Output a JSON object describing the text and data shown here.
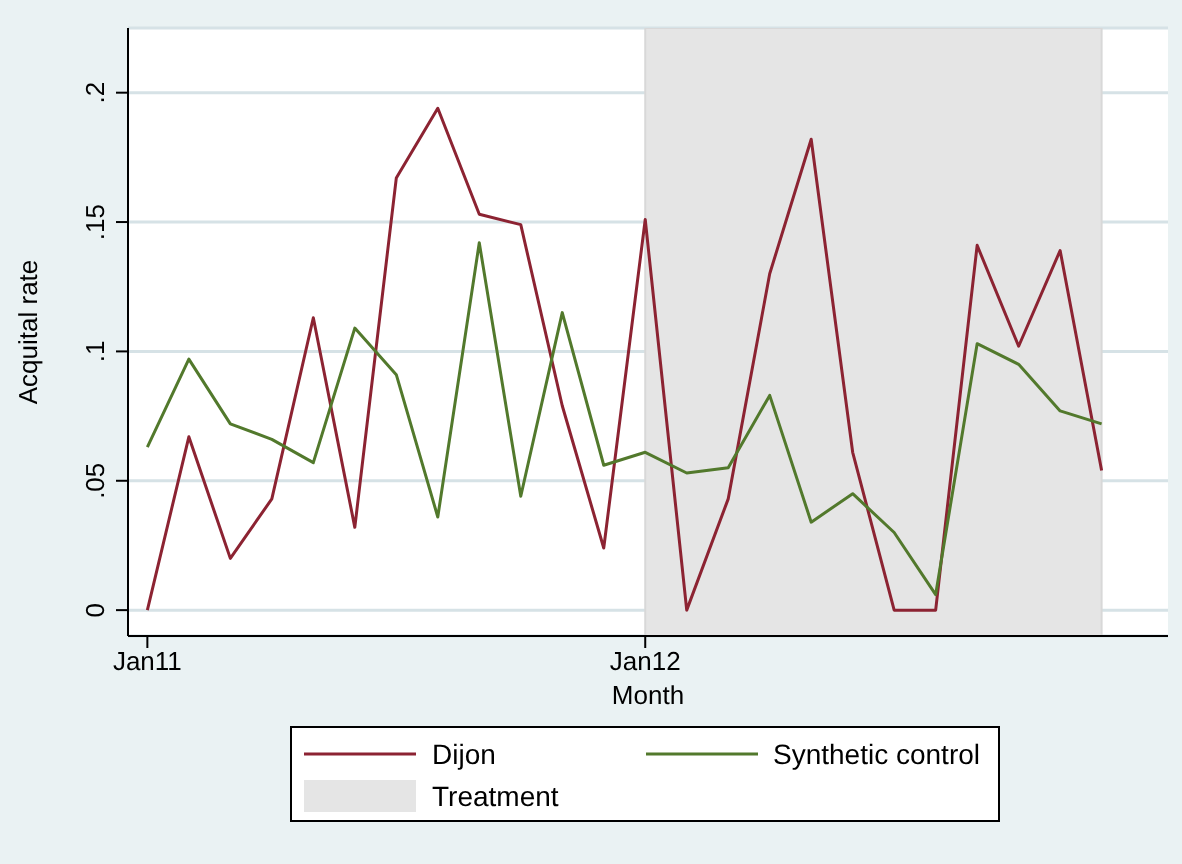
{
  "chart_data": {
    "type": "line",
    "xlabel": "Month",
    "ylabel": "Acquital rate",
    "x": [
      "2011-01",
      "2011-02",
      "2011-03",
      "2011-04",
      "2011-05",
      "2011-06",
      "2011-07",
      "2011-08",
      "2011-09",
      "2011-10",
      "2011-11",
      "2011-12",
      "2012-01",
      "2012-02",
      "2012-03",
      "2012-04",
      "2012-05",
      "2012-06",
      "2012-07",
      "2012-08",
      "2012-09",
      "2012-10",
      "2012-11",
      "2012-12"
    ],
    "series": [
      {
        "name": "Dijon",
        "color": "#8c2332",
        "values": [
          0,
          0.067,
          0.02,
          0.043,
          0.113,
          0.032,
          0.167,
          0.194,
          0.153,
          0.149,
          0.079,
          0.024,
          0.151,
          0,
          0.043,
          0.13,
          0.182,
          0.061,
          0,
          0,
          0.141,
          0.102,
          0.139,
          0.054
        ]
      },
      {
        "name": "Synthetic control",
        "color": "#52792c",
        "values": [
          0.063,
          0.097,
          0.072,
          0.066,
          0.057,
          0.109,
          0.091,
          0.036,
          0.142,
          0.044,
          0.115,
          0.056,
          0.061,
          0.053,
          0.055,
          0.083,
          0.034,
          0.045,
          0.03,
          0.006,
          0.103,
          0.095,
          0.077,
          0.072
        ]
      }
    ],
    "xlim": [
      "2010-12-17",
      "2013-01-19"
    ],
    "xticks": [
      {
        "value": "2011-01",
        "label": "Jan11"
      },
      {
        "value": "2012-01",
        "label": "Jan12"
      }
    ],
    "ylim": [
      -0.01,
      0.225
    ],
    "yticks": [
      {
        "value": 0,
        "label": "0"
      },
      {
        "value": 0.05,
        "label": ".05"
      },
      {
        "value": 0.1,
        "label": ".1"
      },
      {
        "value": 0.15,
        "label": ".15"
      },
      {
        "value": 0.2,
        "label": ".2"
      }
    ],
    "bands": [
      {
        "axis": "x",
        "from": "2012-01",
        "to": "2012-12",
        "label": "Treatment",
        "color": "#e5e5e5"
      }
    ],
    "grid": "y",
    "legend": "bottom",
    "marker": "none",
    "line_style": "solid"
  }
}
